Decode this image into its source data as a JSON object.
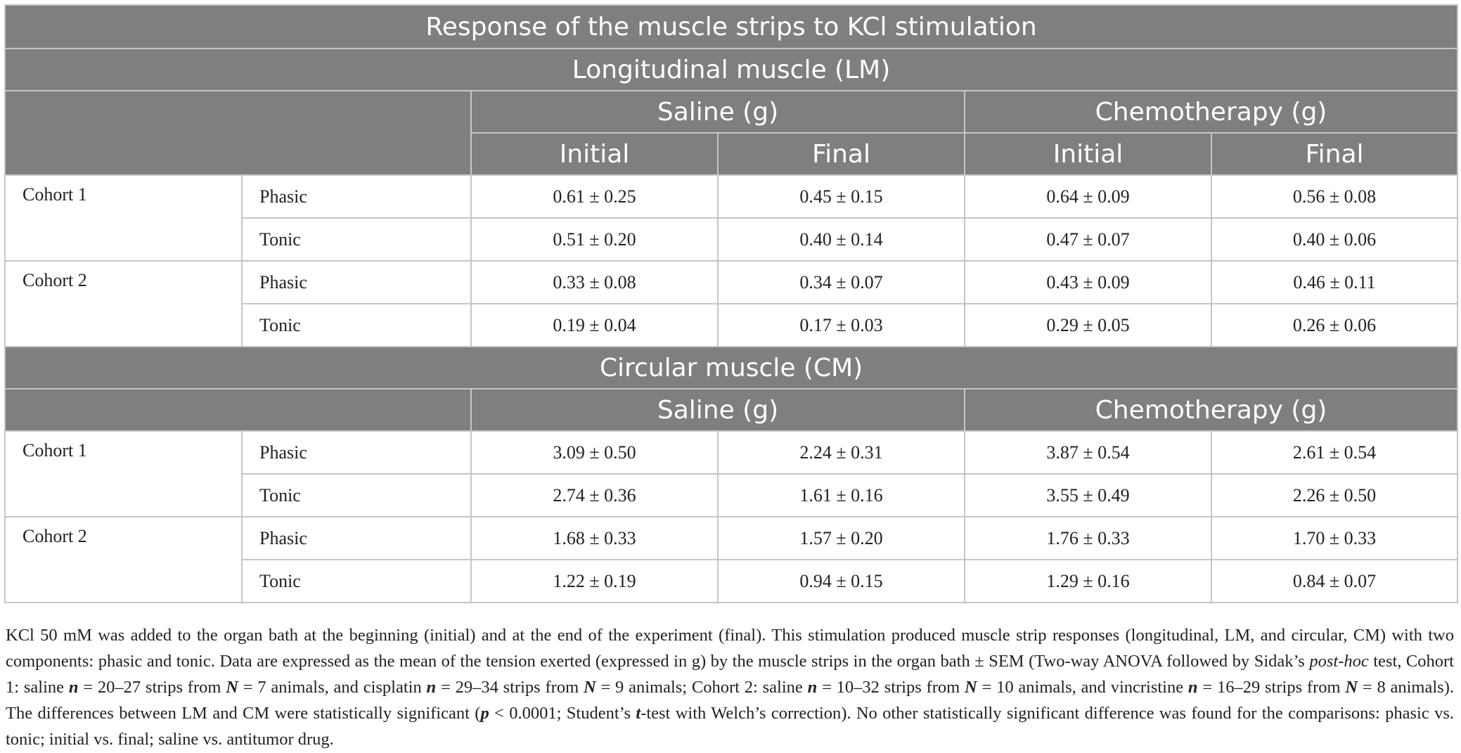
{
  "title": "Response of the muscle strips to KCl stimulation",
  "sections": [
    {
      "heading": "Longitudinal muscle (LM)",
      "groups": [
        "Saline (g)",
        "Chemotherapy (g)"
      ],
      "subheaders": [
        "Initial",
        "Final",
        "Initial",
        "Final"
      ],
      "cohorts": [
        {
          "name": "Cohort 1",
          "rows": [
            {
              "component": "Phasic",
              "values": [
                "0.61 ± 0.25",
                "0.45 ± 0.15",
                "0.64 ± 0.09",
                "0.56 ± 0.08"
              ]
            },
            {
              "component": "Tonic",
              "values": [
                "0.51 ± 0.20",
                "0.40 ± 0.14",
                "0.47 ± 0.07",
                "0.40 ± 0.06"
              ]
            }
          ]
        },
        {
          "name": "Cohort 2",
          "rows": [
            {
              "component": "Phasic",
              "values": [
                "0.33 ± 0.08",
                "0.34 ± 0.07",
                "0.43 ± 0.09",
                "0.46 ± 0.11"
              ]
            },
            {
              "component": "Tonic",
              "values": [
                "0.19 ± 0.04",
                "0.17 ± 0.03",
                "0.29 ± 0.05",
                "0.26 ± 0.06"
              ]
            }
          ]
        }
      ]
    },
    {
      "heading": "Circular muscle (CM)",
      "groups": [
        "Saline (g)",
        "Chemotherapy (g)"
      ],
      "cohorts": [
        {
          "name": "Cohort 1",
          "rows": [
            {
              "component": "Phasic",
              "values": [
                "3.09 ± 0.50",
                "2.24 ± 0.31",
                "3.87 ± 0.54",
                "2.61 ± 0.54"
              ]
            },
            {
              "component": "Tonic",
              "values": [
                "2.74 ± 0.36",
                "1.61 ± 0.16",
                "3.55 ± 0.49",
                "2.26 ± 0.50"
              ]
            }
          ]
        },
        {
          "name": "Cohort 2",
          "rows": [
            {
              "component": "Phasic",
              "values": [
                "1.68 ± 0.33",
                "1.57 ± 0.20",
                "1.76 ± 0.33",
                "1.70 ± 0.33"
              ]
            },
            {
              "component": "Tonic",
              "values": [
                "1.22 ± 0.19",
                "0.94 ± 0.15",
                "1.29 ± 0.16",
                "0.84 ± 0.07"
              ]
            }
          ]
        }
      ]
    }
  ],
  "footnote": {
    "p1": "KCl 50 mM was added to the organ bath at the beginning (initial) and at the end of the experiment (final). This stimulation produced muscle strip responses (longitudinal, LM, and circular, CM) with two components: phasic and tonic. Data are expressed as the mean of the tension exerted (expressed in g) by the muscle strips in the organ bath ± SEM (Two-way ANOVA followed by Sidak’s ",
    "posthoc": "post-hoc",
    "p2": " test, Cohort 1: saline ",
    "n1": "n",
    "p3": " = 20–27 strips from ",
    "N1": "N",
    "p4": " = 7 animals, and cisplatin ",
    "n2": "n",
    "p5": " = 29–34 strips from ",
    "N2": "N",
    "p6": " = 9 animals; Cohort 2: saline ",
    "n3": "n",
    "p7": " = 10–32 strips from ",
    "N3": "N",
    "p8": " = 10 animals, and vincristine ",
    "n4": "n",
    "p9": " = 16–29 strips from ",
    "N4": "N",
    "p10": " = 8 animals). The differences between LM and CM were statistically significant (",
    "p_sym": "p",
    "p11": " < 0.0001; Student’s ",
    "t_sym": "t",
    "p12": "-test with Welch’s correction). No other statistically significant difference was found for the comparisons: phasic vs. tonic; initial vs. final; saline vs. antitumor drug."
  }
}
